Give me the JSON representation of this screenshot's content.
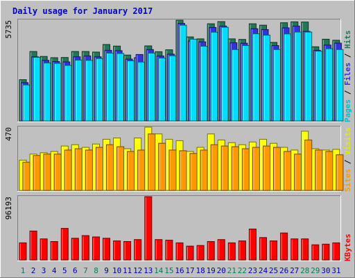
{
  "title": "Daily usage for January 2017",
  "chart_data": [
    {
      "type": "bar",
      "panel": "pages-files-hits",
      "max_label": "5735",
      "ylim": [
        0,
        5735
      ],
      "right_label": {
        "parts": [
          "Pages",
          " / ",
          "Files",
          " / ",
          "Hits"
        ]
      },
      "categories": [
        "1",
        "2",
        "3",
        "4",
        "5",
        "6",
        "7",
        "8",
        "9",
        "10",
        "11",
        "12",
        "13",
        "14",
        "15",
        "16",
        "17",
        "18",
        "19",
        "20",
        "21",
        "22",
        "23",
        "24",
        "25",
        "26",
        "27",
        "28",
        "29",
        "30",
        "31"
      ],
      "series": [
        {
          "name": "Hits",
          "color": "#227755",
          "values": [
            2350,
            3950,
            3670,
            3600,
            3610,
            3950,
            3950,
            3920,
            4350,
            4260,
            3750,
            3600,
            4270,
            3940,
            4050,
            5730,
            4780,
            4670,
            5530,
            5650,
            4670,
            4640,
            5530,
            5450,
            4470,
            5590,
            5640,
            5630,
            4220,
            4650,
            4590
          ]
        },
        {
          "name": "Files",
          "color": "#3333dd",
          "values": [
            2180,
            3650,
            3450,
            3380,
            3360,
            3650,
            3700,
            3650,
            4020,
            4000,
            3520,
            3780,
            4060,
            3700,
            3800,
            5550,
            4550,
            4500,
            5320,
            5400,
            4450,
            4420,
            5250,
            5200,
            4290,
            5300,
            5400,
            5100,
            4020,
            4320,
            4430
          ]
        },
        {
          "name": "Pages",
          "color": "#00ddff",
          "values": [
            2050,
            3620,
            3300,
            3280,
            3160,
            3460,
            3450,
            3550,
            3860,
            3840,
            3420,
            3350,
            3860,
            3580,
            3710,
            5450,
            4650,
            4250,
            5050,
            5330,
            4060,
            4290,
            4960,
            4880,
            4060,
            4950,
            5060,
            5060,
            3970,
            4110,
            4060
          ]
        }
      ]
    },
    {
      "type": "bar",
      "panel": "sites-visits",
      "max_label": "470",
      "ylim": [
        0,
        470
      ],
      "right_label": {
        "parts": [
          "Sites",
          " / ",
          "Visits"
        ]
      },
      "categories": [
        "1",
        "2",
        "3",
        "4",
        "5",
        "6",
        "7",
        "8",
        "9",
        "10",
        "11",
        "12",
        "13",
        "14",
        "15",
        "16",
        "17",
        "18",
        "19",
        "20",
        "21",
        "22",
        "23",
        "24",
        "25",
        "26",
        "27",
        "28",
        "29",
        "30",
        "31"
      ],
      "series": [
        {
          "name": "Visits",
          "color": "#ffff00",
          "values": [
            225,
            270,
            280,
            290,
            330,
            340,
            320,
            345,
            380,
            390,
            310,
            390,
            470,
            420,
            380,
            370,
            290,
            320,
            420,
            375,
            355,
            340,
            360,
            380,
            350,
            320,
            300,
            440,
            310,
            300,
            305
          ]
        },
        {
          "name": "Sites",
          "color": "#ff9900",
          "values": [
            210,
            260,
            270,
            270,
            300,
            310,
            300,
            320,
            340,
            325,
            290,
            300,
            420,
            350,
            300,
            295,
            275,
            300,
            340,
            330,
            325,
            310,
            320,
            330,
            320,
            290,
            270,
            375,
            300,
            290,
            265
          ]
        }
      ]
    },
    {
      "type": "bar",
      "panel": "kbytes",
      "max_label": "96193",
      "ylim": [
        0,
        96193
      ],
      "right_label": {
        "parts": [
          "KBytes"
        ]
      },
      "categories": [
        "1",
        "2",
        "3",
        "4",
        "5",
        "6",
        "7",
        "8",
        "9",
        "10",
        "11",
        "12",
        "13",
        "14",
        "15",
        "16",
        "17",
        "18",
        "19",
        "20",
        "21",
        "22",
        "23",
        "24",
        "25",
        "26",
        "27",
        "28",
        "29",
        "30",
        "31"
      ],
      "series": [
        {
          "name": "KBytes",
          "color": "#ff0000",
          "values": [
            26000,
            44000,
            32000,
            28000,
            48000,
            33000,
            37000,
            35000,
            33000,
            29000,
            28000,
            31000,
            96193,
            31000,
            30000,
            26000,
            21000,
            22000,
            28000,
            31000,
            26000,
            29000,
            47000,
            34000,
            29000,
            41000,
            32000,
            32000,
            23000,
            24000,
            26000
          ]
        }
      ]
    }
  ],
  "x_axis": {
    "labels": [
      "1",
      "2",
      "3",
      "4",
      "5",
      "6",
      "7",
      "8",
      "9",
      "10",
      "11",
      "12",
      "13",
      "14",
      "15",
      "16",
      "17",
      "18",
      "19",
      "20",
      "21",
      "22",
      "23",
      "24",
      "25",
      "26",
      "27",
      "28",
      "29",
      "30",
      "31"
    ],
    "weekend_days": [
      "1",
      "7",
      "8",
      "14",
      "15",
      "21",
      "22",
      "28",
      "29"
    ],
    "weekend_color": "#00805c",
    "weekday_color": "#0000aa"
  },
  "colors": {
    "title": "#0000cc",
    "background": "#c0c0c0",
    "frame": "#e5e5e5"
  }
}
